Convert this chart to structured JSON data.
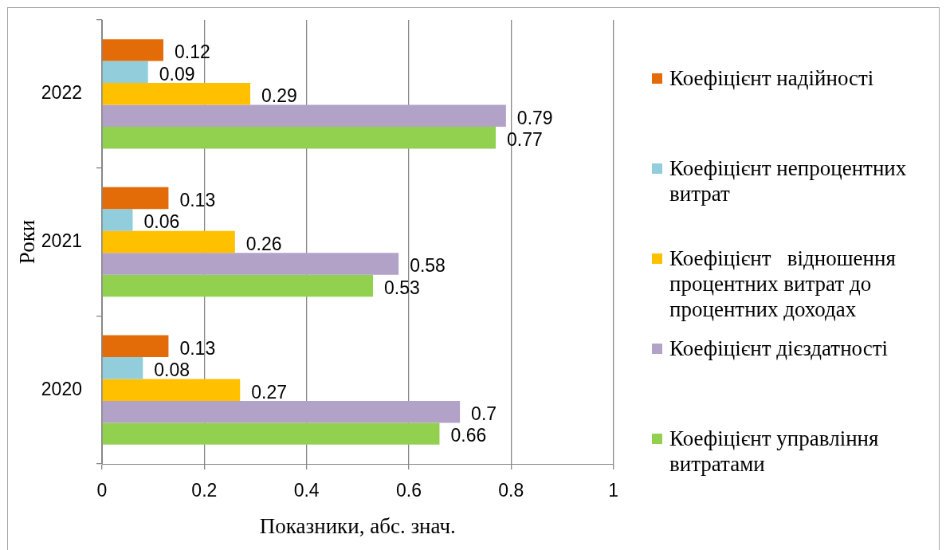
{
  "chart_data": {
    "type": "bar",
    "orientation": "horizontal",
    "xlabel": "Показники, абс. знач.",
    "ylabel": "Роки",
    "categories": [
      "2022",
      "2021",
      "2020"
    ],
    "series": [
      {
        "name": "Коефіцієнт надійності",
        "color": "#e36c09",
        "values": [
          0.12,
          0.13,
          0.13
        ]
      },
      {
        "name": "Коефіцієнт непроцентних витрат",
        "color": "#92cddc",
        "values": [
          0.09,
          0.06,
          0.08
        ]
      },
      {
        "name": "Коефіцієнт   відношення процентних витрат до процентних доходах",
        "color": "#ffc000",
        "values": [
          0.29,
          0.26,
          0.27
        ]
      },
      {
        "name": "Коефіцієнт дієздатності",
        "color": "#b2a2c7",
        "values": [
          0.79,
          0.58,
          0.7
        ]
      },
      {
        "name": "Коефіцієнт управління витратами",
        "color": "#92d050",
        "values": [
          0.77,
          0.53,
          0.66
        ]
      }
    ],
    "xlim": [
      0,
      1
    ],
    "xticks": [
      0,
      0.2,
      0.4,
      0.6,
      0.8,
      1
    ],
    "grid": "x",
    "legend": "right",
    "data_labels": true
  }
}
